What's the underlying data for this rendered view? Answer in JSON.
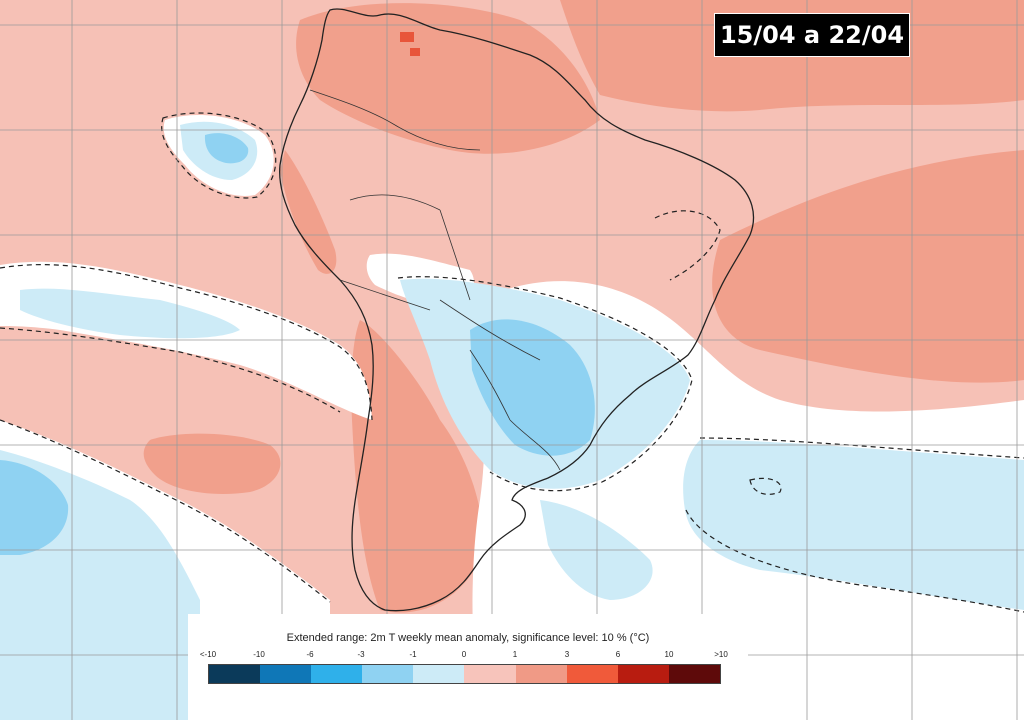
{
  "period_label": "15/04 a 22/04",
  "legend": {
    "title": "Extended range: 2m T weekly mean anomaly, significance level: 10 % (°C)",
    "ticks": [
      "<-10",
      "-10",
      "-6",
      "-3",
      "-1",
      "0",
      "1",
      "3",
      "6",
      "10",
      ">10"
    ],
    "colors": [
      "#0b3a5a",
      "#0f77b7",
      "#2fb0ea",
      "#8fd2f2",
      "#cdebf7",
      "#f7c4bb",
      "#f09a86",
      "#f05a3a",
      "#b81c10",
      "#5e0a0a"
    ]
  },
  "map_colors": {
    "warm_light": "#f6c1b6",
    "warm_mid": "#f1a08c",
    "warm_strong": "#e8553a",
    "neutral": "#ffffff",
    "cool_light": "#cdebf7",
    "cool_mid": "#8fd2f2",
    "grid": "#9a9a9a",
    "coast": "#222222"
  }
}
